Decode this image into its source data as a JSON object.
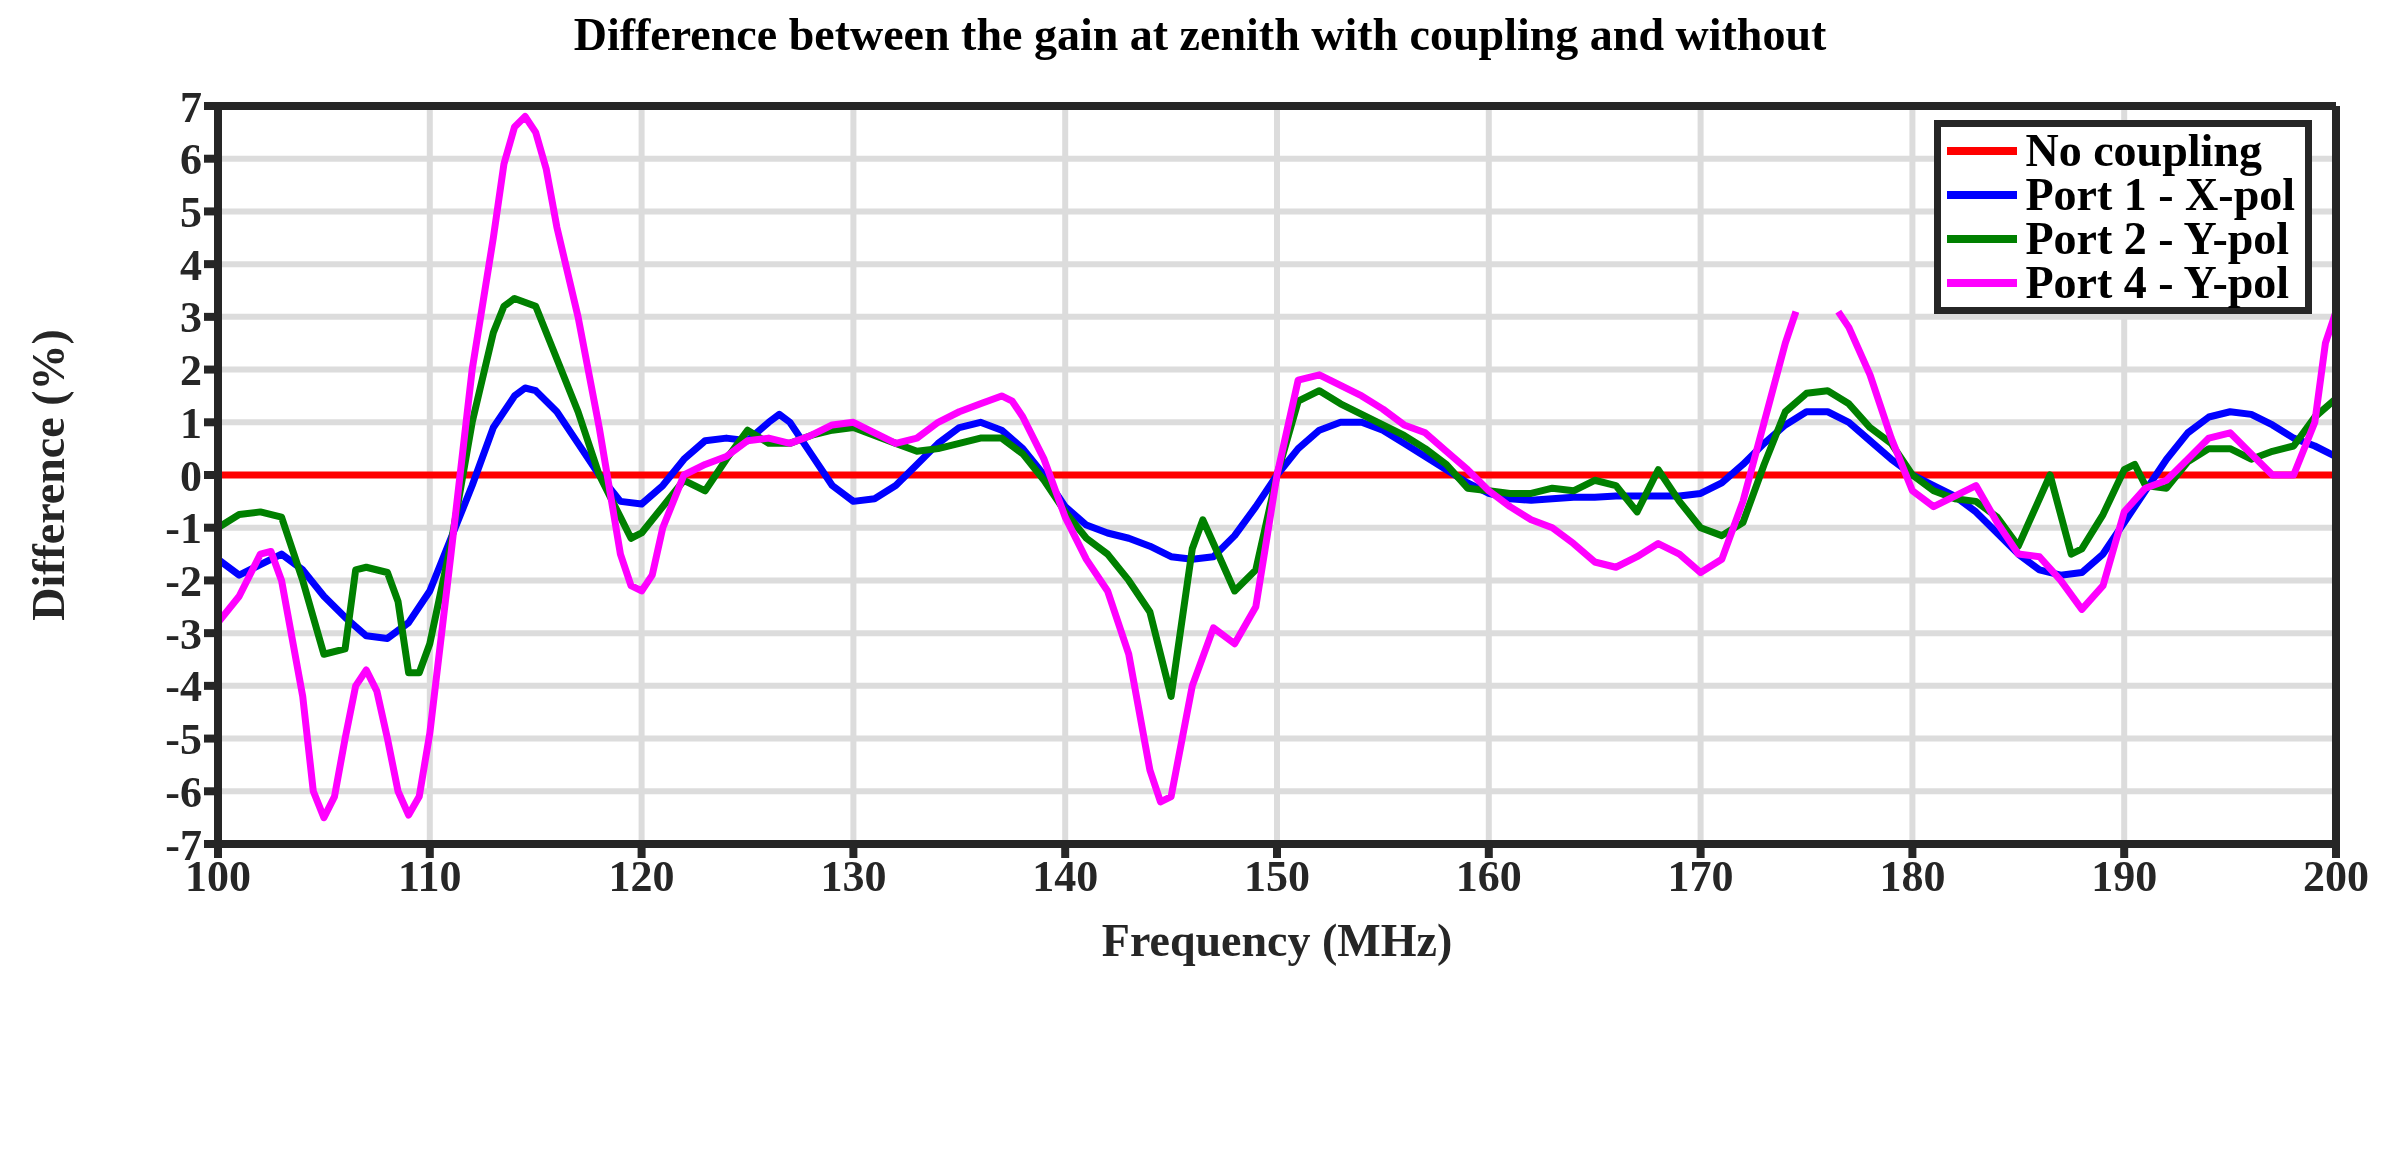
{
  "chart_data": {
    "type": "line",
    "title": "Difference between the gain at zenith with coupling and without",
    "xlabel": "Frequency (MHz)",
    "ylabel": "Difference (%)",
    "xlim": [
      100,
      200
    ],
    "xticks": [
      100,
      110,
      120,
      130,
      140,
      150,
      160,
      170,
      180,
      190,
      200
    ],
    "ylim": [
      -7,
      7
    ],
    "yticks": [
      -7,
      -6,
      -5,
      -4,
      -3,
      -2,
      -1,
      0,
      1,
      2,
      3,
      4,
      5,
      6,
      7
    ],
    "grid": true,
    "legend": "top right",
    "marker": "none",
    "line_style": "solid",
    "series": [
      {
        "name": "No coupling",
        "color": "#ff0000",
        "x": [
          100,
          200
        ],
        "values": [
          0,
          0
        ]
      },
      {
        "name": "Port 1 - X-pol",
        "color": "#0000ff",
        "x": [
          100,
          101,
          102,
          103,
          104,
          105,
          106,
          107,
          108,
          109,
          110,
          111,
          112,
          113,
          114,
          114.5,
          115,
          116,
          117,
          118,
          119,
          120,
          121,
          122,
          123,
          124,
          125,
          126,
          126.5,
          127,
          128,
          129,
          130,
          131,
          132,
          133,
          134,
          135,
          136,
          137,
          138,
          139,
          140,
          141,
          142,
          143,
          144,
          145,
          146,
          147,
          148,
          149,
          150,
          151,
          152,
          153,
          154,
          155,
          156,
          157,
          158,
          159,
          160,
          161,
          162,
          163,
          164,
          165,
          166,
          167,
          168,
          169,
          170,
          171,
          172,
          173,
          174,
          175,
          176,
          177,
          178,
          179,
          180,
          181,
          182,
          183,
          184,
          185,
          186,
          187,
          188,
          189,
          190,
          191,
          192,
          193,
          194,
          195,
          196,
          197,
          198,
          199,
          200
        ],
        "values": [
          -1.6,
          -1.9,
          -1.7,
          -1.5,
          -1.8,
          -2.3,
          -2.7,
          -3.05,
          -3.1,
          -2.8,
          -2.2,
          -1.2,
          -0.2,
          0.9,
          1.5,
          1.65,
          1.6,
          1.2,
          0.6,
          0,
          -0.5,
          -0.55,
          -0.2,
          0.3,
          0.65,
          0.7,
          0.65,
          1,
          1.15,
          1,
          0.4,
          -0.2,
          -0.5,
          -0.45,
          -0.2,
          0.2,
          0.6,
          0.9,
          1,
          0.85,
          0.5,
          0,
          -0.6,
          -0.95,
          -1.1,
          -1.2,
          -1.35,
          -1.55,
          -1.6,
          -1.55,
          -1.15,
          -0.6,
          0,
          0.5,
          0.85,
          1,
          1,
          0.85,
          0.6,
          0.35,
          0.1,
          -0.15,
          -0.35,
          -0.45,
          -0.48,
          -0.45,
          -0.42,
          -0.42,
          -0.4,
          -0.4,
          -0.4,
          -0.4,
          -0.35,
          -0.15,
          0.2,
          0.6,
          0.95,
          1.2,
          1.2,
          1,
          0.65,
          0.3,
          0,
          -0.2,
          -0.4,
          -0.7,
          -1.1,
          -1.5,
          -1.8,
          -1.9,
          -1.85,
          -1.5,
          -0.9,
          -0.3,
          0.3,
          0.8,
          1.1,
          1.2,
          1.15,
          0.95,
          0.7,
          0.55,
          0.35
        ]
      },
      {
        "name": "Port 2 - Y-pol",
        "color": "#008000",
        "x": [
          100,
          101,
          102,
          103,
          104,
          105,
          106,
          106.5,
          107,
          108,
          108.5,
          109,
          109.5,
          110,
          111,
          112,
          113,
          113.5,
          114,
          115,
          116,
          117,
          118,
          119,
          119.5,
          120,
          121,
          122,
          122.5,
          123,
          124,
          125,
          126,
          127,
          128,
          129,
          130,
          131,
          132,
          133,
          134,
          135,
          136,
          137,
          138,
          139,
          140,
          141,
          142,
          143,
          144,
          145,
          146,
          146.5,
          147,
          148,
          149,
          150,
          151,
          152,
          153,
          154,
          155,
          156,
          157,
          158,
          159,
          160,
          161,
          162,
          163,
          164,
          165,
          166,
          167,
          168,
          169,
          170,
          171,
          172,
          173,
          174,
          175,
          176,
          177,
          178,
          179,
          180,
          181,
          182,
          183,
          184,
          185,
          185.5,
          186.5,
          187.5,
          188,
          189,
          190,
          190.5,
          191,
          192,
          193,
          194,
          195,
          196,
          197,
          198,
          199,
          200
        ],
        "values": [
          -1,
          -0.75,
          -0.7,
          -0.8,
          -2,
          -3.4,
          -3.3,
          -1.8,
          -1.75,
          -1.85,
          -2.4,
          -3.75,
          -3.75,
          -3.2,
          -1.3,
          1,
          2.7,
          3.2,
          3.35,
          3.2,
          2.2,
          1.2,
          0,
          -0.8,
          -1.2,
          -1.1,
          -0.6,
          -0.1,
          -0.2,
          -0.3,
          0.3,
          0.85,
          0.6,
          0.6,
          0.75,
          0.85,
          0.9,
          0.75,
          0.6,
          0.45,
          0.5,
          0.6,
          0.7,
          0.7,
          0.4,
          -0.1,
          -0.7,
          -1.2,
          -1.5,
          -2,
          -2.6,
          -4.2,
          -1.4,
          -0.85,
          -1.3,
          -2.2,
          -1.8,
          0,
          1.4,
          1.6,
          1.35,
          1.15,
          0.95,
          0.75,
          0.5,
          0.2,
          -0.25,
          -0.3,
          -0.35,
          -0.35,
          -0.25,
          -0.3,
          -0.1,
          -0.2,
          -0.7,
          0.1,
          -0.5,
          -1,
          -1.15,
          -0.9,
          0.2,
          1.2,
          1.55,
          1.6,
          1.35,
          0.9,
          0.6,
          0,
          -0.3,
          -0.45,
          -0.5,
          -0.8,
          -1.35,
          -0.9,
          0,
          -1.5,
          -1.4,
          -0.75,
          0.1,
          0.2,
          -0.2,
          -0.25,
          0.25,
          0.5,
          0.5,
          0.3,
          0.45,
          0.55,
          1.1,
          1.45
        ]
      },
      {
        "name": "Port 4 - Y-pol",
        "color": "#ff00ff",
        "x": [
          100,
          101,
          102,
          102.5,
          103,
          104,
          104.5,
          105,
          105.5,
          106,
          106.5,
          107,
          107.5,
          108,
          108.5,
          109,
          109.5,
          110,
          111,
          112,
          113,
          113.5,
          114,
          114.5,
          115,
          115.5,
          116,
          117,
          118,
          119,
          119.5,
          120,
          120.5,
          121,
          122,
          123,
          124,
          125,
          126,
          127,
          128,
          129,
          130,
          131,
          132,
          133,
          134,
          135,
          136,
          137,
          137.5,
          138,
          139,
          140,
          141,
          142,
          143,
          144,
          144.5,
          145,
          146,
          147,
          148,
          149,
          150,
          151,
          152,
          153,
          154,
          155,
          156,
          157,
          158,
          159,
          160,
          161,
          162,
          163,
          164,
          165,
          166,
          167,
          168,
          169,
          170,
          171,
          172,
          173,
          174,
          174.5,
          175,
          176,
          176.5,
          177,
          178,
          179,
          180,
          181,
          182,
          183,
          184,
          185,
          186,
          187,
          188,
          189,
          190,
          191,
          192,
          193,
          194,
          195,
          196,
          197,
          198,
          199,
          199.5,
          200
        ],
        "values": [
          -2.8,
          -2.3,
          -1.5,
          -1.45,
          -2,
          -4.2,
          -6,
          -6.5,
          -6.1,
          -5,
          -4,
          -3.7,
          -4.1,
          -5,
          -6,
          -6.45,
          -6.1,
          -4.9,
          -1.5,
          2,
          4.5,
          5.9,
          6.6,
          6.8,
          6.5,
          5.8,
          4.7,
          3,
          0.9,
          -1.5,
          -2.1,
          -2.2,
          -1.9,
          -1,
          0,
          0.2,
          0.35,
          0.65,
          0.7,
          0.6,
          0.75,
          0.95,
          1,
          0.8,
          0.6,
          0.7,
          1,
          1.2,
          1.35,
          1.5,
          1.4,
          1.1,
          0.3,
          -0.8,
          -1.6,
          -2.2,
          -3.4,
          -5.6,
          -6.2,
          -6.1,
          -4,
          -2.9,
          -3.2,
          -2.5,
          0,
          1.8,
          1.9,
          1.7,
          1.5,
          1.25,
          0.95,
          0.8,
          0.45,
          0.1,
          -0.3,
          -0.6,
          -0.85,
          -1,
          -1.3,
          -1.65,
          -1.75,
          -1.55,
          -1.3,
          -1.5,
          -1.85,
          -1.6,
          -0.5,
          1,
          2.5,
          3.1,
          null,
          null,
          3.1,
          2.8,
          1.9,
          0.7,
          -0.3,
          -0.6,
          -0.4,
          -0.2,
          -0.9,
          -1.5,
          -1.55,
          -2,
          -2.55,
          -2.1,
          -0.7,
          -0.25,
          -0.1,
          0.3,
          0.7,
          0.8,
          0.4,
          0,
          0,
          1,
          2.5,
          3.1
        ]
      }
    ]
  }
}
